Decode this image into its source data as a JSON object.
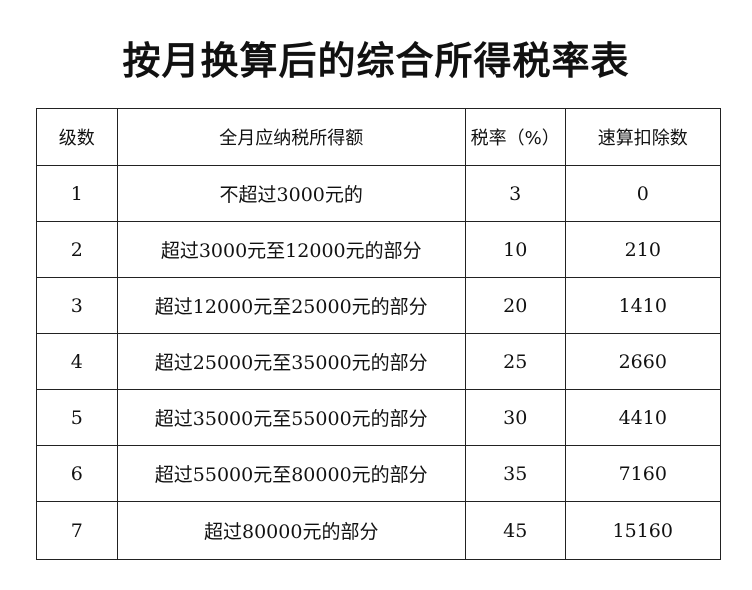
{
  "title": "按月换算后的综合所得税率表",
  "headers": [
    "级数",
    "全月应纳税所得额",
    "税率（%）",
    "速算扣除数"
  ],
  "rows": [
    [
      "1",
      "不超过3000元的",
      "3",
      "0"
    ],
    [
      "2",
      "超过3000元至12000元的部分",
      "10",
      "210"
    ],
    [
      "3",
      "超过12000元至25000元的部分",
      "20",
      "1410"
    ],
    [
      "4",
      "超过25000元至35000元的部分",
      "25",
      "2660"
    ],
    [
      "5",
      "超过35000元至55000元的部分",
      "30",
      "4410"
    ],
    [
      "6",
      "超过55000元至80000元的部分",
      "35",
      "7160"
    ],
    [
      "7",
      "超过80000元的部分",
      "45",
      "15160"
    ]
  ]
}
